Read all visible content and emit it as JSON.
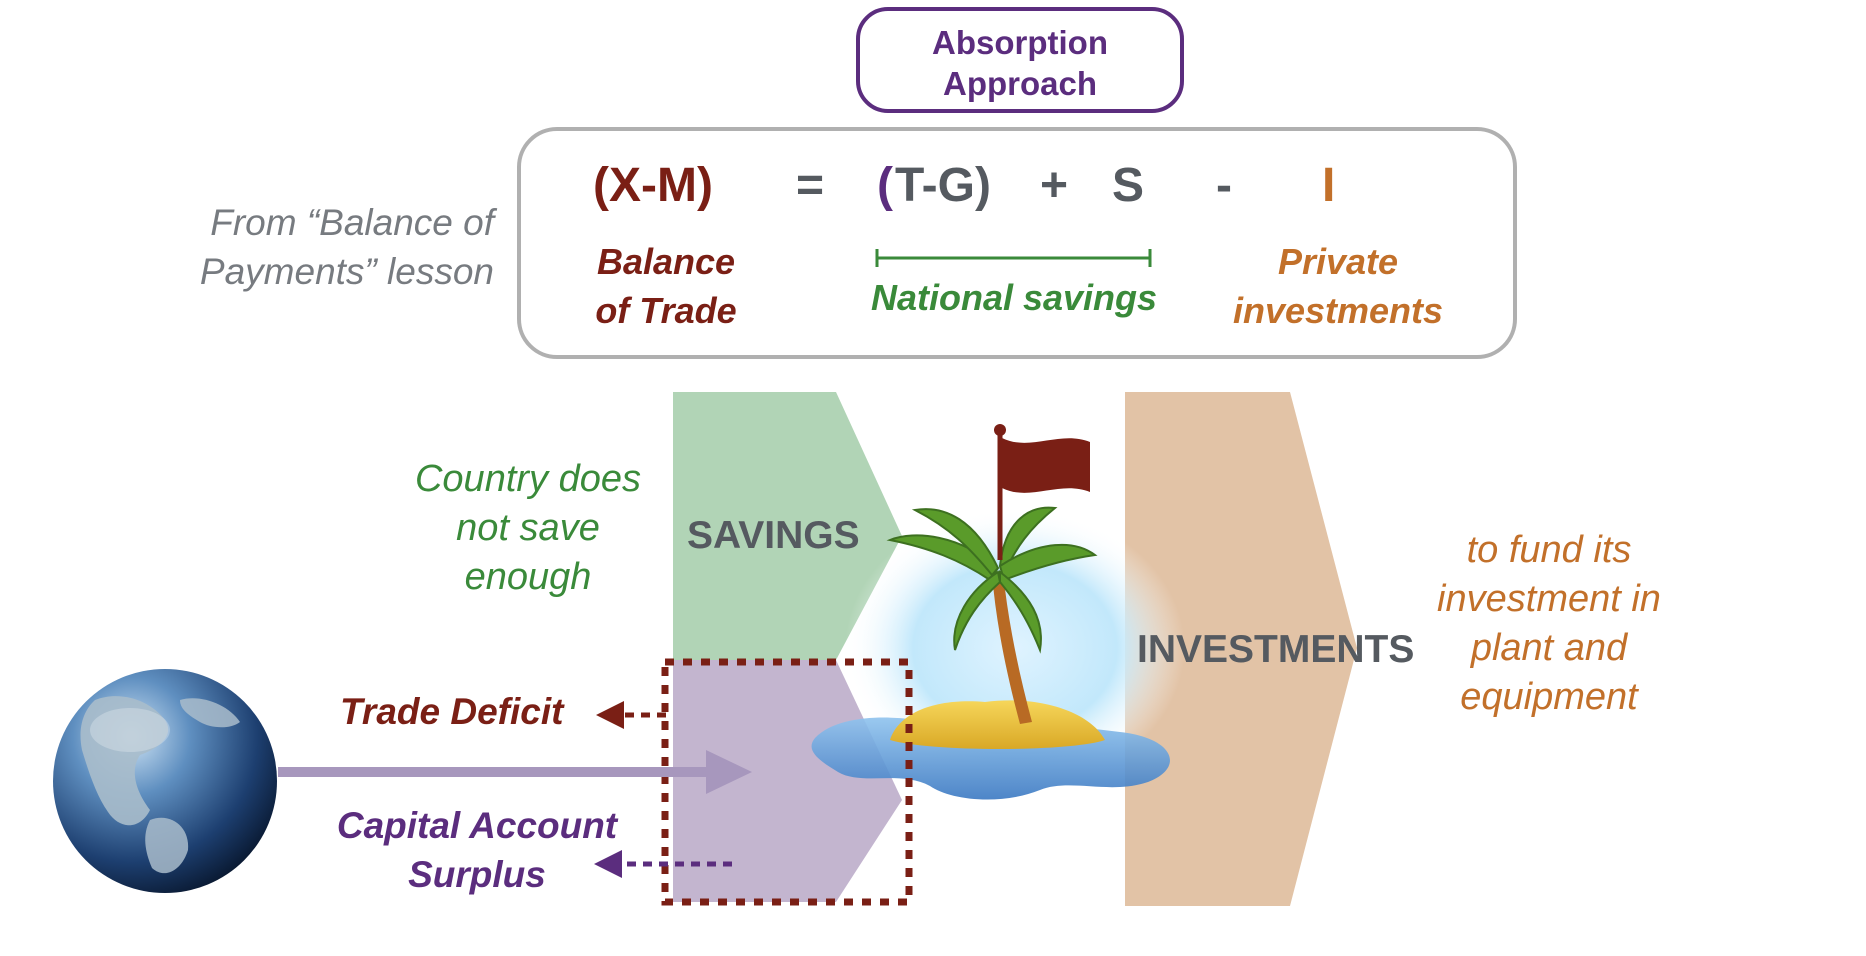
{
  "title_box": {
    "text": "Absorption\nApproach"
  },
  "equation": {
    "xm": "(X-M)",
    "equals": "=",
    "open_paren": "(",
    "tg": "T-G)",
    "plus": "+",
    "s": "S",
    "minus": "-",
    "i": "I"
  },
  "labels": {
    "balance_of_trade": "Balance\nof Trade",
    "national_savings": "National savings",
    "private_investments": "Private\ninvestments"
  },
  "source_note": "From “Balance of\nPayments” lesson",
  "diagram": {
    "savings": "SAVINGS",
    "investments": "INVESTMENTS",
    "not_save": "Country does\nnot save\nenough",
    "fund": "to fund its\ninvestment in\nplant and\nequipment",
    "trade_deficit": "Trade Deficit",
    "capital_surplus": "Capital Account\nSurplus"
  },
  "colors": {
    "maroon": "#7a1f15",
    "purple": "#5b2d7e",
    "gray": "#555a60",
    "green": "#3a8a3a",
    "orange": "#c2702a",
    "savings_fill": "#b1d4b6",
    "investment_fill": "#e2c3a6",
    "capital_fill": "#c3b5cf"
  }
}
